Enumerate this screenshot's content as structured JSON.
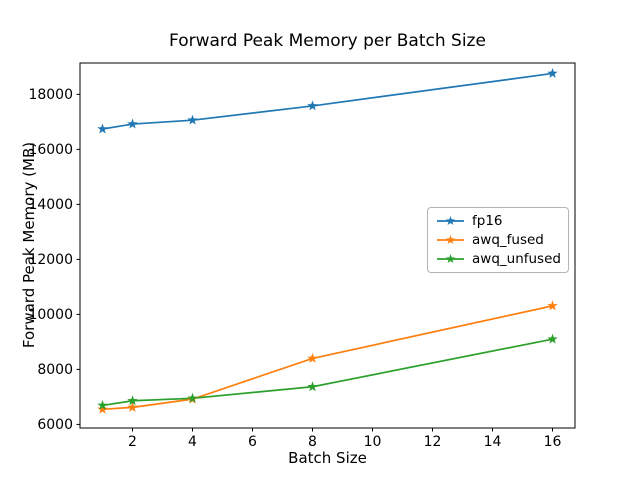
{
  "window": {
    "title": "Forward Peak Memory per Batch Size"
  },
  "chart_data": {
    "type": "line",
    "title": "Forward Peak Memory per Batch Size",
    "xlabel": "Batch Size",
    "ylabel": "Forward Peak Memory (MB)",
    "x": [
      1,
      2,
      4,
      8,
      16
    ],
    "series": [
      {
        "name": "fp16",
        "color": "#1f77b4",
        "values": [
          16740,
          16920,
          17060,
          17580,
          18760
        ]
      },
      {
        "name": "awq_fused",
        "color": "#ff7f0e",
        "values": [
          6550,
          6620,
          6920,
          8400,
          10310
        ]
      },
      {
        "name": "awq_unfused",
        "color": "#2ca02c",
        "values": [
          6690,
          6860,
          6950,
          7370,
          9100
        ]
      }
    ],
    "xlim": [
      0.25,
      16.75
    ],
    "ylim": [
      5870,
      19140
    ],
    "xticks": [
      2,
      4,
      6,
      8,
      10,
      12,
      14,
      16
    ],
    "yticks": [
      6000,
      8000,
      10000,
      12000,
      14000,
      16000,
      18000
    ],
    "marker": "star",
    "grid": false,
    "legend_position": "center right",
    "axis_color": "#000000",
    "background": "#ffffff"
  }
}
